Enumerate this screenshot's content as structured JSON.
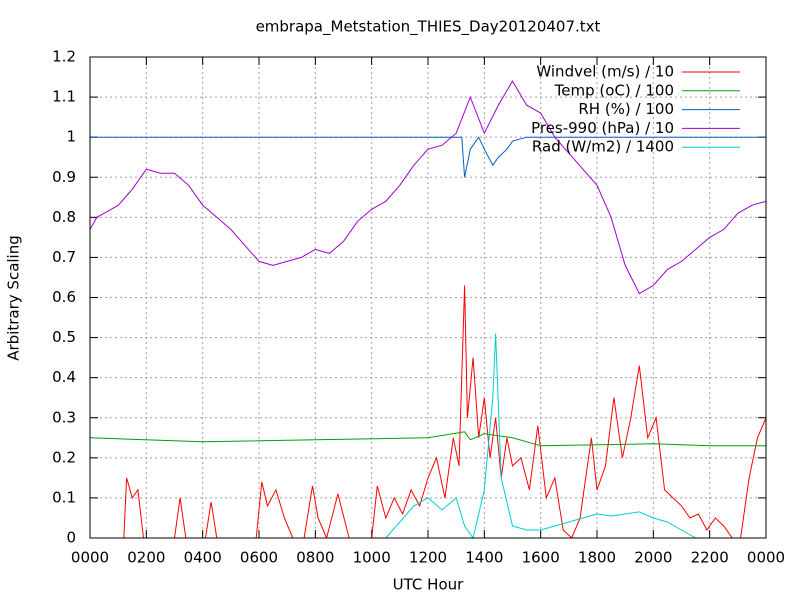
{
  "chart_data": {
    "type": "line",
    "title": "embrapa_Metstation_THIES_Day20120407.txt",
    "xlabel": "UTC Hour",
    "ylabel": "Arbitrary Scaling",
    "xlim": [
      0,
      24
    ],
    "ylim": [
      0,
      1.2
    ],
    "grid": true,
    "legend": "top-right",
    "xticks": [
      {
        "value": 0,
        "label": "0000"
      },
      {
        "value": 2,
        "label": "0200"
      },
      {
        "value": 4,
        "label": "0400"
      },
      {
        "value": 6,
        "label": "0600"
      },
      {
        "value": 8,
        "label": "0800"
      },
      {
        "value": 10,
        "label": "1000"
      },
      {
        "value": 12,
        "label": "1200"
      },
      {
        "value": 14,
        "label": "1400"
      },
      {
        "value": 16,
        "label": "1600"
      },
      {
        "value": 18,
        "label": "1800"
      },
      {
        "value": 20,
        "label": "2000"
      },
      {
        "value": 22,
        "label": "2200"
      },
      {
        "value": 24,
        "label": "0000"
      }
    ],
    "yticks": [
      0,
      0.1,
      0.2,
      0.3,
      0.4,
      0.5,
      0.6,
      0.7,
      0.8,
      0.9,
      1,
      1.1,
      1.2
    ],
    "series": [
      {
        "name": "Windvel (m/s) / 10",
        "color": "#ff0000",
        "x": [
          0,
          1.2,
          1.3,
          1.5,
          1.7,
          1.9,
          2.1,
          3.0,
          3.2,
          3.4,
          4.1,
          4.3,
          4.5,
          5.9,
          6.1,
          6.3,
          6.6,
          6.9,
          7.2,
          7.6,
          7.9,
          8.1,
          8.4,
          8.8,
          9.2,
          10.0,
          10.2,
          10.5,
          10.8,
          11.1,
          11.4,
          11.7,
          12.0,
          12.3,
          12.6,
          12.9,
          13.1,
          13.3,
          13.4,
          13.6,
          13.8,
          14.0,
          14.2,
          14.4,
          14.6,
          14.8,
          15.0,
          15.3,
          15.6,
          15.9,
          16.2,
          16.5,
          16.8,
          17.1,
          17.4,
          17.6,
          17.8,
          18.0,
          18.3,
          18.6,
          18.9,
          19.2,
          19.5,
          19.8,
          20.1,
          20.4,
          20.7,
          21.0,
          21.3,
          21.6,
          21.9,
          22.2,
          22.5,
          22.8,
          23.1,
          23.4,
          23.7,
          24
        ],
        "values": [
          0,
          0,
          0.15,
          0.1,
          0.12,
          0,
          0,
          0,
          0.1,
          0,
          0,
          0.09,
          0,
          0,
          0.14,
          0.08,
          0.12,
          0.05,
          0,
          0,
          0.13,
          0.05,
          0,
          0.11,
          0,
          0,
          0.13,
          0.05,
          0.1,
          0.06,
          0.12,
          0.08,
          0.15,
          0.2,
          0.1,
          0.25,
          0.18,
          0.63,
          0.3,
          0.45,
          0.25,
          0.35,
          0.2,
          0.3,
          0.15,
          0.25,
          0.18,
          0.2,
          0.12,
          0.28,
          0.1,
          0.15,
          0.02,
          0,
          0.05,
          0.15,
          0.25,
          0.12,
          0.18,
          0.35,
          0.2,
          0.3,
          0.43,
          0.25,
          0.3,
          0.12,
          0.1,
          0.08,
          0.05,
          0.06,
          0.02,
          0.05,
          0.03,
          0,
          0,
          0.15,
          0.25,
          0.3
        ]
      },
      {
        "name": "Temp (oC) / 100",
        "color": "#00a000",
        "x": [
          0,
          4,
          8,
          12,
          13.3,
          13.5,
          14,
          15,
          16,
          20,
          22,
          24
        ],
        "values": [
          0.25,
          0.24,
          0.245,
          0.25,
          0.265,
          0.245,
          0.26,
          0.25,
          0.23,
          0.235,
          0.23,
          0.23
        ]
      },
      {
        "name": "RH (%) / 100",
        "color": "#0060c0",
        "x": [
          0,
          13.2,
          13.3,
          13.5,
          13.8,
          14,
          14.3,
          14.5,
          14.8,
          15,
          15.5,
          24
        ],
        "values": [
          1,
          1,
          0.9,
          0.97,
          1,
          0.97,
          0.93,
          0.95,
          0.97,
          0.99,
          1,
          1
        ]
      },
      {
        "name": "Pres-990 (hPa) / 10",
        "color": "#a000d0",
        "x": [
          0,
          0.25,
          0.5,
          1,
          1.5,
          2,
          2.5,
          3,
          3.5,
          4,
          4.5,
          5,
          5.5,
          6,
          6.5,
          7,
          7.5,
          8,
          8.5,
          9,
          9.5,
          10,
          10.5,
          11,
          11.5,
          12,
          12.5,
          13,
          13.5,
          14,
          14.5,
          15,
          15.5,
          16,
          16.5,
          17,
          17.5,
          18,
          18.5,
          19,
          19.5,
          20,
          20.5,
          21,
          21.5,
          22,
          22.5,
          23,
          23.5,
          24
        ],
        "values": [
          0.77,
          0.8,
          0.81,
          0.83,
          0.87,
          0.92,
          0.91,
          0.91,
          0.88,
          0.83,
          0.8,
          0.77,
          0.73,
          0.69,
          0.68,
          0.69,
          0.7,
          0.72,
          0.71,
          0.74,
          0.79,
          0.82,
          0.84,
          0.88,
          0.93,
          0.97,
          0.98,
          1.01,
          1.1,
          1.01,
          1.08,
          1.14,
          1.08,
          1.06,
          1,
          0.96,
          0.92,
          0.88,
          0.8,
          0.68,
          0.61,
          0.63,
          0.67,
          0.69,
          0.72,
          0.75,
          0.77,
          0.81,
          0.83,
          0.84
        ]
      },
      {
        "name": "Rad (W/m2) / 1400",
        "color": "#00d0d0",
        "x": [
          0,
          10.5,
          11,
          11.5,
          12,
          12.5,
          13,
          13.3,
          13.6,
          14,
          14.3,
          14.4,
          14.6,
          15,
          15.5,
          16,
          16.5,
          17,
          17.5,
          18,
          18.5,
          19,
          19.5,
          20,
          20.5,
          21,
          21.5,
          24
        ],
        "values": [
          0,
          0,
          0.04,
          0.08,
          0.1,
          0.07,
          0.1,
          0.03,
          0,
          0.12,
          0.35,
          0.51,
          0.15,
          0.03,
          0.02,
          0.02,
          0.03,
          0.04,
          0.05,
          0.06,
          0.055,
          0.06,
          0.065,
          0.05,
          0.04,
          0.02,
          0,
          0
        ]
      }
    ]
  }
}
